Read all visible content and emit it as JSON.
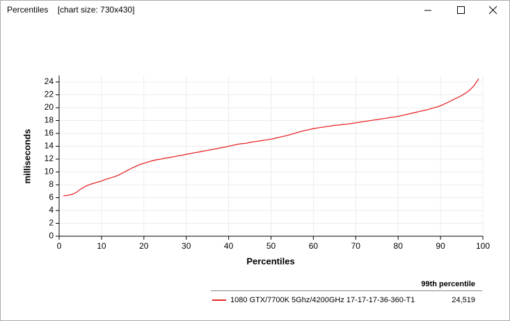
{
  "window": {
    "title": "Percentiles    [chart size: 730x430]"
  },
  "chart_data": {
    "type": "line",
    "x_label": "Percentiles",
    "y_label": "milliseconds",
    "x": [
      1,
      2,
      3,
      4,
      5,
      6,
      7,
      8,
      9,
      10,
      11,
      12,
      13,
      14,
      15,
      16,
      17,
      18,
      19,
      20,
      21,
      22,
      23,
      24,
      25,
      26,
      27,
      28,
      29,
      30,
      31,
      32,
      33,
      34,
      35,
      36,
      37,
      38,
      39,
      40,
      41,
      42,
      43,
      44,
      45,
      46,
      47,
      48,
      49,
      50,
      51,
      52,
      53,
      54,
      55,
      56,
      57,
      58,
      59,
      60,
      61,
      62,
      63,
      64,
      65,
      66,
      67,
      68,
      69,
      70,
      71,
      72,
      73,
      74,
      75,
      76,
      77,
      78,
      79,
      80,
      81,
      82,
      83,
      84,
      85,
      86,
      87,
      88,
      89,
      90,
      91,
      92,
      93,
      94,
      95,
      96,
      97,
      98,
      99
    ],
    "series": [
      {
        "name": "1080 GTX/7700K 5Ghz/4200GHz 17-17-17-36-360-T1",
        "color": "#e8262a",
        "values": [
          6.3,
          6.35,
          6.5,
          6.8,
          7.3,
          7.7,
          8.0,
          8.2,
          8.4,
          8.6,
          8.85,
          9.05,
          9.25,
          9.5,
          9.85,
          10.2,
          10.55,
          10.85,
          11.15,
          11.35,
          11.55,
          11.75,
          11.9,
          12.0,
          12.15,
          12.25,
          12.35,
          12.5,
          12.6,
          12.75,
          12.85,
          13.0,
          13.1,
          13.25,
          13.35,
          13.5,
          13.6,
          13.75,
          13.85,
          14.0,
          14.15,
          14.3,
          14.4,
          14.45,
          14.6,
          14.7,
          14.8,
          14.9,
          15.0,
          15.1,
          15.25,
          15.4,
          15.55,
          15.7,
          15.9,
          16.1,
          16.3,
          16.45,
          16.6,
          16.75,
          16.85,
          16.95,
          17.05,
          17.15,
          17.25,
          17.3,
          17.4,
          17.45,
          17.55,
          17.65,
          17.75,
          17.85,
          17.95,
          18.05,
          18.15,
          18.25,
          18.35,
          18.45,
          18.55,
          18.65,
          18.8,
          18.95,
          19.1,
          19.25,
          19.4,
          19.55,
          19.7,
          19.9,
          20.1,
          20.3,
          20.6,
          20.9,
          21.25,
          21.55,
          21.9,
          22.3,
          22.8,
          23.5,
          24.5
        ],
        "legend_value": "24,519"
      }
    ],
    "legend_header": "99th percentile",
    "xlim": [
      0,
      100
    ],
    "xticks": [
      0,
      10,
      20,
      30,
      40,
      50,
      60,
      70,
      80,
      90,
      100
    ],
    "ylim": [
      0,
      25
    ],
    "yticks": [
      0,
      2,
      4,
      6,
      8,
      10,
      12,
      14,
      16,
      18,
      20,
      22,
      24
    ],
    "grid": true
  }
}
